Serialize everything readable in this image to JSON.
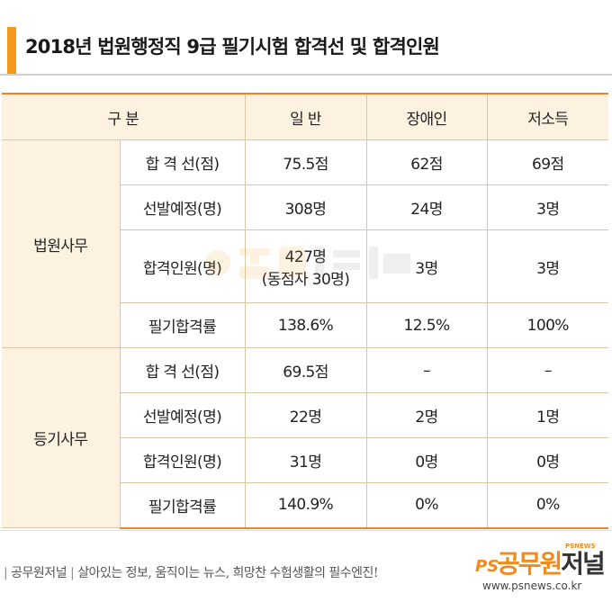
{
  "title": "2018년 법원행정직 9급 필기시험 합격선 및 합격인원",
  "table": {
    "header": [
      "구  분",
      "일 반",
      "장애인",
      "저소득"
    ],
    "groups": [
      {
        "name": "법원사무",
        "rows": [
          {
            "label": "합 격 선(점)",
            "values": [
              "75.5점",
              "62점",
              "69점"
            ]
          },
          {
            "label": "선발예정(명)",
            "values": [
              "308명",
              "24명",
              "3명"
            ]
          },
          {
            "label": "합격인원(명)",
            "values": [
              "427명",
              "3명",
              "3명"
            ],
            "note": "(동점자 30명)"
          },
          {
            "label": "필기합격률",
            "values": [
              "138.6%",
              "12.5%",
              "100%"
            ]
          }
        ]
      },
      {
        "name": "등기사무",
        "rows": [
          {
            "label": "합 격 선(점)",
            "values": [
              "69.5점",
              "–",
              "–"
            ]
          },
          {
            "label": "선발예정(명)",
            "values": [
              "22명",
              "2명",
              "1명"
            ]
          },
          {
            "label": "합격인원(명)",
            "values": [
              "31명",
              "0명",
              "0명"
            ]
          },
          {
            "label": "필기합격률",
            "values": [
              "140.9%",
              "0%",
              "0%"
            ]
          }
        ]
      }
    ]
  },
  "footer": {
    "brand": "공무원저널",
    "slogan": "살아있는 정보, 움직이는 뉴스, 희망찬 수험생활의 필수엔진!"
  },
  "logo": {
    "ps": "PS",
    "name_a": "공무원",
    "name_b": "저널",
    "tag": "PSNEWS",
    "url": "www.psnews.co.kr"
  },
  "colors": {
    "accent": "#f39a1e",
    "header_bg": "#fdf1e0",
    "border": "#d7c7a8"
  }
}
